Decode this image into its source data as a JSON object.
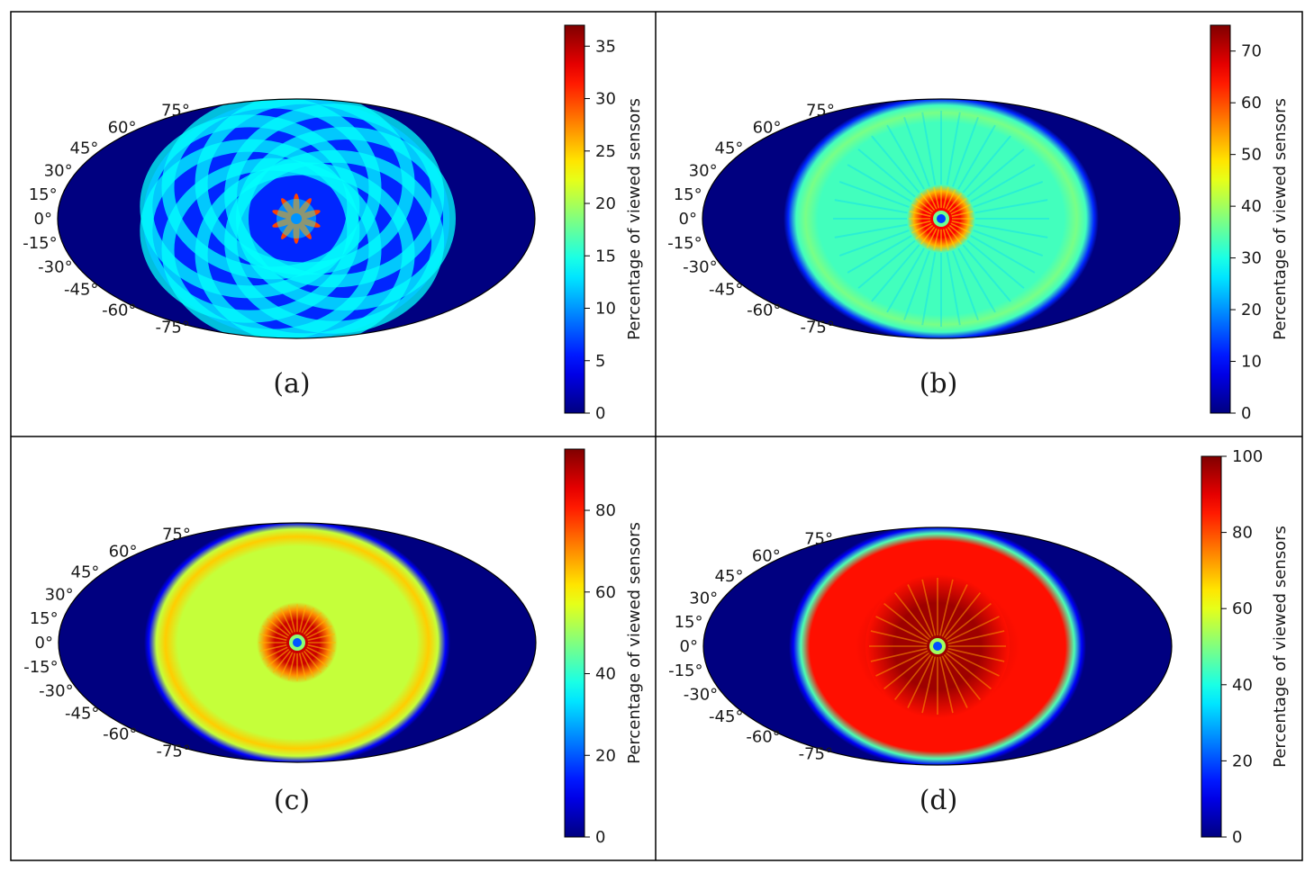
{
  "chart_data": [
    {
      "type": "heatmap",
      "projection": "mollweide",
      "panel_label": "(a)",
      "colorbar_label": "Percentage of viewed sensors",
      "colormap": "jet",
      "clim": [
        0,
        37
      ],
      "colorbar_ticks": [
        0,
        5,
        10,
        15,
        20,
        25,
        30,
        35
      ],
      "colorbar_tick_labels": [
        "0",
        "5",
        "10",
        "15",
        "20",
        "25",
        "30",
        "35"
      ],
      "lat_labels": [
        "75°",
        "60°",
        "45°",
        "30°",
        "15°",
        "0°",
        "-15°",
        "-30°",
        "-45°",
        "-60°",
        "-75°"
      ],
      "pattern": "rosette",
      "background_value": 0,
      "disk_value": 6,
      "rosette_value": 14,
      "center_value": 30,
      "center_core_value": 10
    },
    {
      "type": "heatmap",
      "projection": "mollweide",
      "panel_label": "(b)",
      "colorbar_label": "Percentage of viewed sensors",
      "colormap": "jet",
      "clim": [
        0,
        75
      ],
      "colorbar_ticks": [
        0,
        10,
        20,
        30,
        40,
        50,
        60,
        70
      ],
      "colorbar_tick_labels": [
        "0",
        "10",
        "20",
        "30",
        "40",
        "50",
        "60",
        "70"
      ],
      "lat_labels": [
        "75°",
        "60°",
        "45°",
        "30°",
        "15°",
        "0°",
        "-15°",
        "-30°",
        "-45°",
        "-60°",
        "-75°"
      ],
      "pattern": "textured-disk",
      "background_value": 0,
      "disk_value": 33,
      "ring_value": 37,
      "center_value": 66,
      "center_core_value": 14
    },
    {
      "type": "heatmap",
      "projection": "mollweide",
      "panel_label": "(c)",
      "colorbar_label": "Percentage of viewed sensors",
      "colormap": "jet",
      "clim": [
        0,
        95
      ],
      "colorbar_ticks": [
        0,
        20,
        40,
        60,
        80
      ],
      "colorbar_tick_labels": [
        "0",
        "20",
        "40",
        "60",
        "80"
      ],
      "lat_labels": [
        "75°",
        "60°",
        "45°",
        "30°",
        "15°",
        "0°",
        "-15°",
        "-30°",
        "-45°",
        "-60°",
        "-75°"
      ],
      "pattern": "smooth-disk",
      "background_value": 0,
      "disk_value": 54,
      "ring_value": 64,
      "center_value": 88,
      "center_core_value": 20
    },
    {
      "type": "heatmap",
      "projection": "mollweide",
      "panel_label": "(d)",
      "colorbar_label": "Percentage of viewed sensors",
      "colormap": "jet",
      "clim": [
        0,
        100
      ],
      "colorbar_ticks": [
        0,
        20,
        40,
        60,
        80,
        100
      ],
      "colorbar_tick_labels": [
        "0",
        "20",
        "40",
        "60",
        "80",
        "100"
      ],
      "lat_labels": [
        "75°",
        "60°",
        "45°",
        "30°",
        "15°",
        "0°",
        "-15°",
        "-30°",
        "-45°",
        "-60°",
        "-75°"
      ],
      "pattern": "saturated-disk",
      "background_value": 0,
      "disk_value": 86,
      "edge_value": 45,
      "center_value": 97,
      "center_core_value": 20
    }
  ]
}
